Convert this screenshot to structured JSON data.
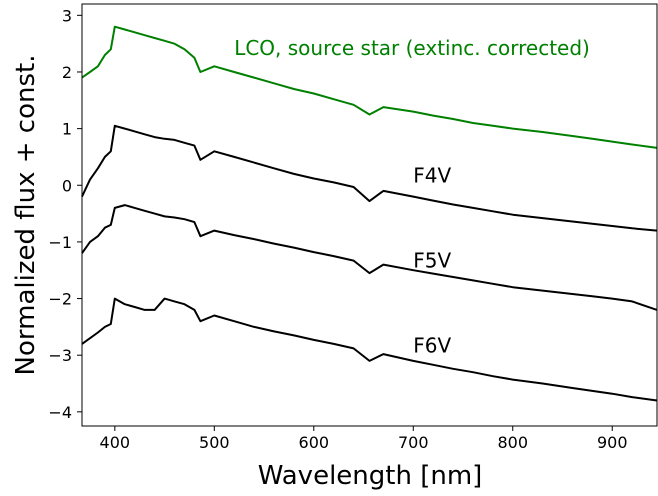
{
  "chart_data": {
    "type": "line",
    "title": "",
    "xlabel": "Wavelength [nm]",
    "ylabel": "Normalized flux + const.",
    "xlim": [
      367,
      945
    ],
    "ylim": [
      -4.25,
      3.2
    ],
    "xticks": [
      400,
      500,
      600,
      700,
      800,
      900
    ],
    "yticks": [
      -4,
      -3,
      -2,
      -1,
      0,
      1,
      2,
      3
    ],
    "grid": false,
    "legend": "none",
    "series": [
      {
        "label": "LCO, source star (extinc. corrected)",
        "color": "#008000",
        "label_pos": [
          520,
          2.3
        ],
        "x": [
          367,
          375,
          383,
          390,
          396,
          400,
          410,
          420,
          430,
          440,
          450,
          460,
          470,
          480,
          486,
          500,
          520,
          540,
          560,
          580,
          600,
          620,
          640,
          656,
          670,
          700,
          720,
          740,
          760,
          780,
          800,
          830,
          860,
          880,
          900,
          920,
          945
        ],
        "y": [
          1.9,
          2.0,
          2.1,
          2.3,
          2.4,
          2.8,
          2.75,
          2.7,
          2.65,
          2.6,
          2.55,
          2.5,
          2.4,
          2.25,
          2.0,
          2.1,
          2.0,
          1.9,
          1.8,
          1.7,
          1.62,
          1.52,
          1.42,
          1.25,
          1.38,
          1.3,
          1.23,
          1.17,
          1.1,
          1.05,
          1.0,
          0.94,
          0.87,
          0.82,
          0.77,
          0.72,
          0.66
        ]
      },
      {
        "label": "F4V",
        "color": "#000000",
        "label_pos": [
          700,
          0.05
        ],
        "x": [
          367,
          375,
          383,
          390,
          396,
          400,
          410,
          420,
          430,
          440,
          450,
          460,
          470,
          480,
          486,
          500,
          520,
          540,
          560,
          580,
          600,
          620,
          640,
          656,
          670,
          700,
          720,
          740,
          760,
          780,
          800,
          830,
          860,
          880,
          900,
          920,
          945
        ],
        "y": [
          -0.2,
          0.1,
          0.3,
          0.5,
          0.6,
          1.05,
          1.0,
          0.95,
          0.9,
          0.85,
          0.82,
          0.8,
          0.75,
          0.7,
          0.45,
          0.6,
          0.5,
          0.4,
          0.3,
          0.2,
          0.12,
          0.05,
          -0.03,
          -0.28,
          -0.1,
          -0.2,
          -0.27,
          -0.34,
          -0.4,
          -0.46,
          -0.52,
          -0.58,
          -0.64,
          -0.68,
          -0.72,
          -0.76,
          -0.8
        ]
      },
      {
        "label": "F5V",
        "color": "#000000",
        "label_pos": [
          700,
          -1.45
        ],
        "x": [
          367,
          375,
          383,
          390,
          396,
          400,
          410,
          420,
          430,
          440,
          450,
          460,
          470,
          480,
          486,
          500,
          520,
          540,
          560,
          580,
          600,
          620,
          640,
          656,
          670,
          700,
          720,
          740,
          760,
          780,
          800,
          830,
          860,
          880,
          900,
          920,
          945
        ],
        "y": [
          -1.2,
          -1.0,
          -0.9,
          -0.75,
          -0.7,
          -0.4,
          -0.35,
          -0.4,
          -0.45,
          -0.5,
          -0.55,
          -0.57,
          -0.6,
          -0.65,
          -0.9,
          -0.8,
          -0.88,
          -0.95,
          -1.03,
          -1.1,
          -1.18,
          -1.25,
          -1.33,
          -1.55,
          -1.4,
          -1.5,
          -1.56,
          -1.62,
          -1.68,
          -1.74,
          -1.8,
          -1.86,
          -1.92,
          -1.96,
          -2.0,
          -2.05,
          -2.2
        ]
      },
      {
        "label": "F6V",
        "color": "#000000",
        "label_pos": [
          700,
          -2.95
        ],
        "x": [
          367,
          375,
          383,
          390,
          396,
          400,
          410,
          420,
          430,
          440,
          450,
          460,
          470,
          480,
          486,
          500,
          520,
          540,
          560,
          580,
          600,
          620,
          640,
          656,
          670,
          700,
          720,
          740,
          760,
          780,
          800,
          830,
          860,
          880,
          900,
          920,
          945
        ],
        "y": [
          -2.8,
          -2.7,
          -2.6,
          -2.5,
          -2.45,
          -2.0,
          -2.1,
          -2.15,
          -2.2,
          -2.2,
          -2.0,
          -2.05,
          -2.1,
          -2.2,
          -2.4,
          -2.3,
          -2.4,
          -2.5,
          -2.58,
          -2.65,
          -2.73,
          -2.8,
          -2.88,
          -3.1,
          -2.98,
          -3.1,
          -3.17,
          -3.24,
          -3.3,
          -3.37,
          -3.43,
          -3.5,
          -3.58,
          -3.63,
          -3.68,
          -3.74,
          -3.8
        ]
      }
    ]
  }
}
